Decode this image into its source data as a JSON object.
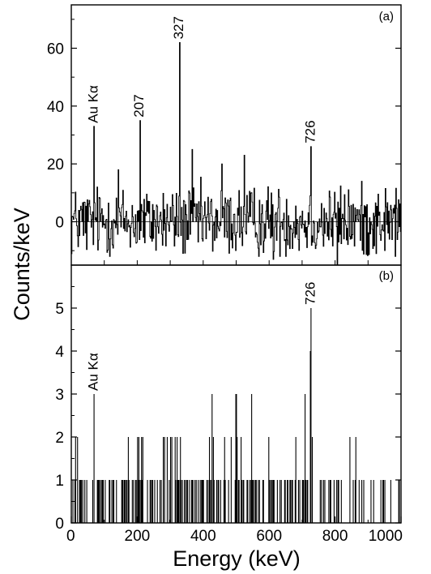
{
  "chart_data": [
    {
      "type": "bar",
      "panel_label": "(a)",
      "xlim": [
        0,
        1000
      ],
      "ylim": [
        -15,
        75
      ],
      "yticks": [
        0,
        20,
        40,
        60
      ],
      "ytick_labels": [
        "0",
        "20",
        "40",
        "60"
      ],
      "xtick_labels": [],
      "annotations": [
        {
          "text": "Au Kα",
          "x": 68,
          "y": 33
        },
        {
          "text": "207",
          "x": 207,
          "y": 35
        },
        {
          "text": "327",
          "x": 327,
          "y": 62
        },
        {
          "text": "726",
          "x": 726,
          "y": 26
        }
      ],
      "peaks": [
        {
          "x": 68,
          "y": 33
        },
        {
          "x": 207,
          "y": 35
        },
        {
          "x": 327,
          "y": 62
        },
        {
          "x": 726,
          "y": 26
        },
        {
          "x": 366,
          "y": 25
        },
        {
          "x": 524,
          "y": 23
        },
        {
          "x": 612,
          "y": -13
        },
        {
          "x": 805,
          "y": -15
        },
        {
          "x": 455,
          "y": 20
        },
        {
          "x": 142,
          "y": 18
        }
      ],
      "noise_sigma": 6,
      "bin_width_kev": 2
    },
    {
      "type": "bar",
      "panel_label": "(b)",
      "xlim": [
        0,
        1000
      ],
      "ylim": [
        0,
        6
      ],
      "yticks": [
        0,
        1,
        2,
        3,
        4,
        5
      ],
      "ytick_labels": [
        "0",
        "1",
        "2",
        "3",
        "4",
        "5"
      ],
      "xticks": [
        0,
        200,
        400,
        600,
        800,
        1000
      ],
      "xtick_labels": [
        "0",
        "200",
        "400",
        "600",
        "800",
        "1000"
      ],
      "annotations": [
        {
          "text": "Au Kα",
          "x": 68,
          "y": 3
        },
        {
          "text": "726",
          "x": 726,
          "y": 5
        }
      ],
      "counts": [
        {
          "x": 726,
          "y": 5
        },
        {
          "x": 724,
          "y": 4
        },
        {
          "x": 68,
          "y": 3
        },
        {
          "x": 426,
          "y": 3
        },
        {
          "x": 497,
          "y": 3
        },
        {
          "x": 499,
          "y": 3
        },
        {
          "x": 545,
          "y": 3
        },
        {
          "x": 707,
          "y": 3
        },
        {
          "x": 12,
          "y": 2
        },
        {
          "x": 18,
          "y": 2
        },
        {
          "x": 172,
          "y": 2
        },
        {
          "x": 200,
          "y": 2
        },
        {
          "x": 204,
          "y": 2
        },
        {
          "x": 212,
          "y": 2
        },
        {
          "x": 215,
          "y": 2
        },
        {
          "x": 278,
          "y": 2
        },
        {
          "x": 281,
          "y": 2
        },
        {
          "x": 290,
          "y": 2
        },
        {
          "x": 300,
          "y": 2
        },
        {
          "x": 304,
          "y": 2
        },
        {
          "x": 314,
          "y": 2
        },
        {
          "x": 319,
          "y": 2
        },
        {
          "x": 330,
          "y": 2
        },
        {
          "x": 418,
          "y": 2
        },
        {
          "x": 430,
          "y": 2
        },
        {
          "x": 464,
          "y": 2
        },
        {
          "x": 483,
          "y": 2
        },
        {
          "x": 502,
          "y": 2
        },
        {
          "x": 513,
          "y": 2
        },
        {
          "x": 597,
          "y": 2
        },
        {
          "x": 680,
          "y": 2
        },
        {
          "x": 729,
          "y": 2
        },
        {
          "x": 843,
          "y": 2
        },
        {
          "x": 862,
          "y": 2
        }
      ],
      "ones_density": 0.45
    }
  ],
  "figure": {
    "ylabel": "Counts/keV",
    "xlabel": "Energy (keV)"
  }
}
